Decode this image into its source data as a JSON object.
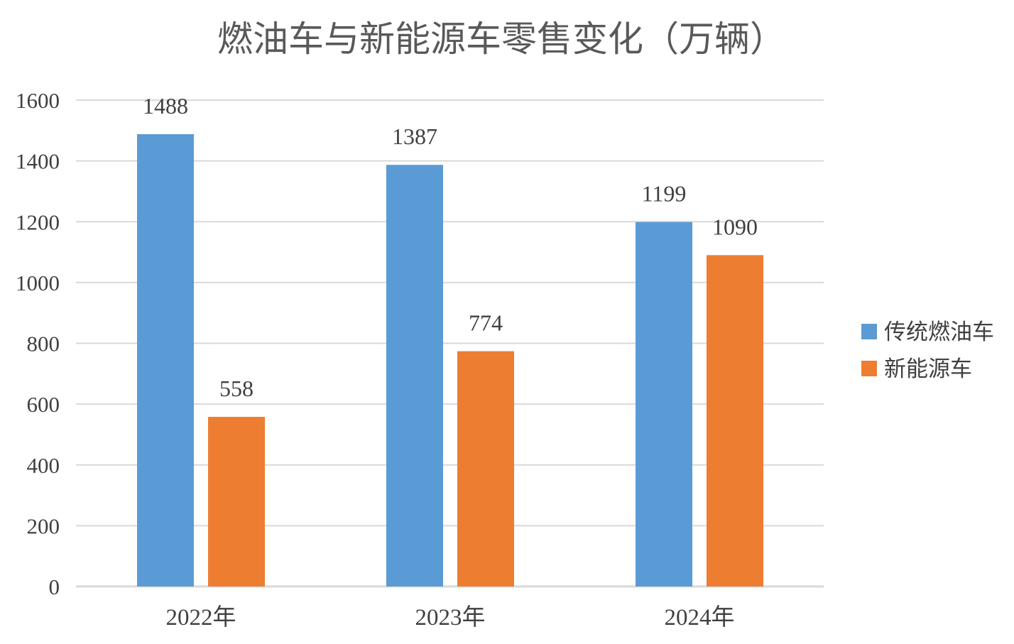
{
  "chart_data": {
    "type": "bar",
    "title": "燃油车与新能源车零售变化（万辆）",
    "categories": [
      "2022年",
      "2023年",
      "2024年"
    ],
    "series": [
      {
        "name": "传统燃油车",
        "color": "#5b9bd5",
        "values": [
          1488,
          1387,
          1199
        ]
      },
      {
        "name": "新能源车",
        "color": "#ed7d31",
        "values": [
          558,
          774,
          1090
        ]
      }
    ],
    "yticks": [
      0,
      200,
      400,
      600,
      800,
      1000,
      1200,
      1400,
      1600
    ],
    "ylim": [
      0,
      1600
    ],
    "xlabel": "",
    "ylabel": "",
    "grid": true,
    "legend_position": "right"
  }
}
